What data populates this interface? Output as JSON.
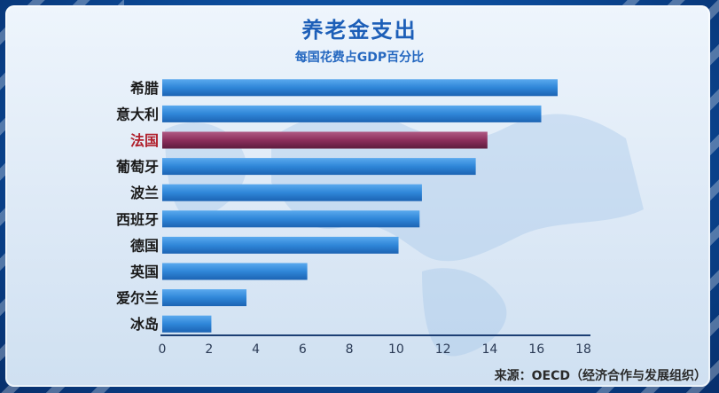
{
  "title": "养老金支出",
  "subtitle": "每国花费占GDP百分比",
  "source": "来源：OECD（经济合作与发展组织）",
  "colors": {
    "bar": "#2f86d8",
    "highlight_bar": "#8c2f5c",
    "highlight_label": "#b0202c",
    "label": "#1a1a1a"
  },
  "chart_data": {
    "type": "bar",
    "orientation": "horizontal",
    "categories": [
      "希腊",
      "意大利",
      "法国",
      "葡萄牙",
      "波兰",
      "西班牙",
      "德国",
      "英国",
      "爱尔兰",
      "冰岛"
    ],
    "values": [
      16.9,
      16.2,
      13.9,
      13.4,
      11.1,
      11.0,
      10.1,
      6.2,
      3.6,
      2.1
    ],
    "highlight": "法国",
    "xlim": [
      0,
      18
    ],
    "xticks": [
      "0",
      "2",
      "4",
      "6",
      "8",
      "10",
      "12",
      "14",
      "16",
      "18"
    ],
    "grid": false
  }
}
